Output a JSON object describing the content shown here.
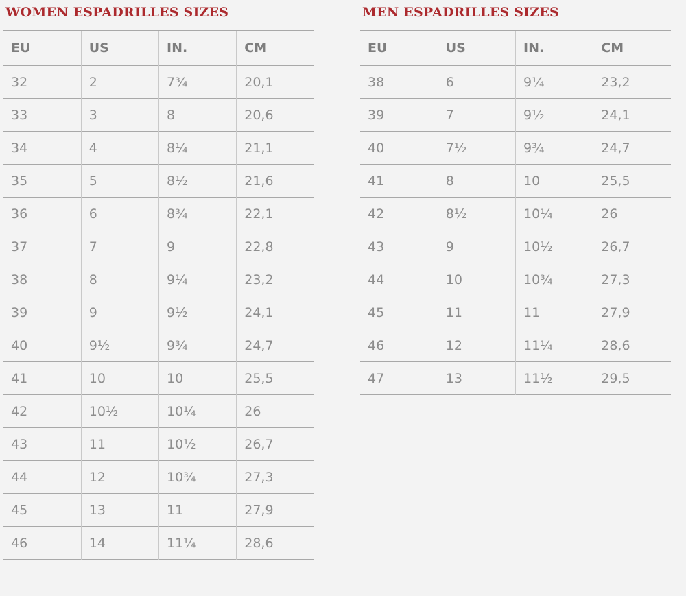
{
  "page": {
    "background_color": "#f3f3f3",
    "accent_color": "#ac2a2e",
    "text_color": "#8d8d8d",
    "header_text_color": "#7e7e7e"
  },
  "women": {
    "title": "WOMEN ESPADRILLES SIZES",
    "headers": [
      "EU",
      "US",
      "IN.",
      "CM"
    ],
    "rows": [
      [
        "32",
        "2",
        "7¾",
        "20,1"
      ],
      [
        "33",
        "3",
        "8",
        "20,6"
      ],
      [
        "34",
        "4",
        "8¼",
        "21,1"
      ],
      [
        "35",
        "5",
        "8½",
        "21,6"
      ],
      [
        "36",
        "6",
        "8¾",
        "22,1"
      ],
      [
        "37",
        "7",
        "9",
        "22,8"
      ],
      [
        "38",
        "8",
        "9¼",
        "23,2"
      ],
      [
        "39",
        "9",
        "9½",
        "24,1"
      ],
      [
        "40",
        "9½",
        "9¾",
        "24,7"
      ],
      [
        "41",
        "10",
        "10",
        "25,5"
      ],
      [
        "42",
        "10½",
        "10¼",
        "26"
      ],
      [
        "43",
        "11",
        "10½",
        "26,7"
      ],
      [
        "44",
        "12",
        "10¾",
        "27,3"
      ],
      [
        "45",
        "13",
        "11",
        "27,9"
      ],
      [
        "46",
        "14",
        "11¼",
        "28,6"
      ]
    ]
  },
  "men": {
    "title": "MEN ESPADRILLES SIZES",
    "headers": [
      "EU",
      "US",
      "IN.",
      "CM"
    ],
    "rows": [
      [
        "38",
        "6",
        "9¼",
        "23,2"
      ],
      [
        "39",
        "7",
        "9½",
        "24,1"
      ],
      [
        "40",
        "7½",
        "9¾",
        "24,7"
      ],
      [
        "41",
        "8",
        "10",
        "25,5"
      ],
      [
        "42",
        "8½",
        "10¼",
        "26"
      ],
      [
        "43",
        "9",
        "10½",
        "26,7"
      ],
      [
        "44",
        "10",
        "10¾",
        "27,3"
      ],
      [
        "45",
        "11",
        "11",
        "27,9"
      ],
      [
        "46",
        "12",
        "11¼",
        "28,6"
      ],
      [
        "47",
        "13",
        "11½",
        "29,5"
      ]
    ]
  }
}
